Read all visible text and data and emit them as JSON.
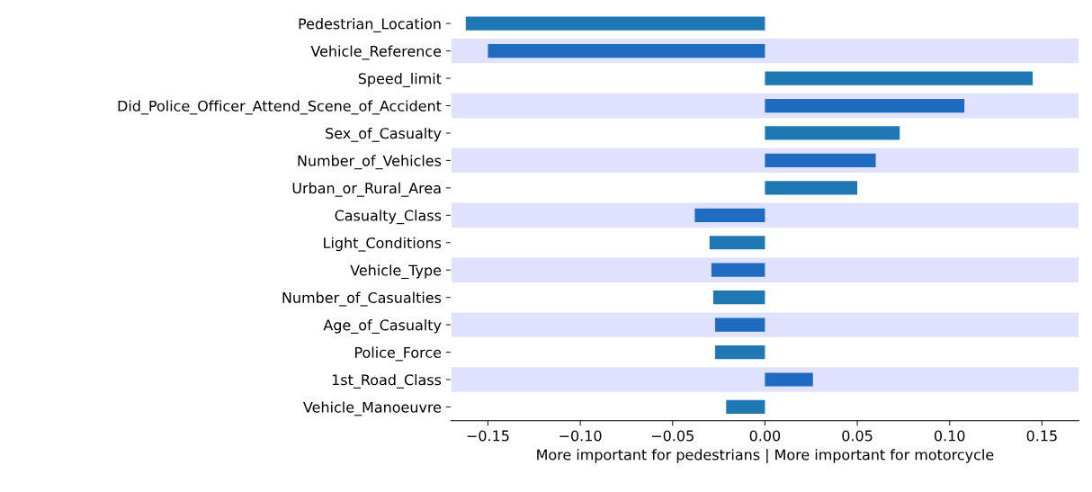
{
  "chart_data": {
    "type": "bar",
    "orientation": "horizontal",
    "xlabel": "More important for pedestrians | More important for motorcycle",
    "categories": [
      "Pedestrian_Location",
      "Vehicle_Reference",
      "Speed_limit",
      "Did_Police_Officer_Attend_Scene_of_Accident",
      "Sex_of_Casualty",
      "Number_of_Vehicles",
      "Urban_or_Rural_Area",
      "Casualty_Class",
      "Light_Conditions",
      "Vehicle_Type",
      "Number_of_Casualties",
      "Age_of_Casualty",
      "Police_Force",
      "1st_Road_Class",
      "Vehicle_Manoeuvre"
    ],
    "values": [
      -0.162,
      -0.15,
      0.145,
      0.108,
      0.073,
      0.06,
      0.05,
      -0.038,
      -0.03,
      -0.029,
      -0.028,
      -0.027,
      -0.027,
      0.026,
      -0.021
    ],
    "colors": [
      "#1f77b4",
      "#1f6bbf",
      "#1f77b4",
      "#1f6bbf",
      "#1f77b4",
      "#1f6bbf",
      "#1f77b4",
      "#1f6bbf",
      "#1f77b4",
      "#1f6bbf",
      "#1f77b4",
      "#1f6bbf",
      "#1f77b4",
      "#1f6bbf",
      "#1f77b4"
    ],
    "xlim": [
      -0.17,
      0.17
    ],
    "xticks": [
      {
        "value": -0.15,
        "label": "−0.15"
      },
      {
        "value": -0.1,
        "label": "−0.10"
      },
      {
        "value": -0.05,
        "label": "−0.05"
      },
      {
        "value": 0,
        "label": "0.00"
      },
      {
        "value": 0.05,
        "label": "0.05"
      },
      {
        "value": 0.1,
        "label": "0.10"
      },
      {
        "value": 0.15,
        "label": "0.15"
      }
    ],
    "bands": [
      {
        "axis": "y",
        "from": "Vehicle_Reference",
        "to": "Vehicle_Reference",
        "color": "#e0e0ff"
      },
      {
        "axis": "y",
        "from": "Did_Police_Officer_Attend_Scene_of_Accident",
        "to": "Did_Police_Officer_Attend_Scene_of_Accident",
        "color": "#e0e0ff"
      },
      {
        "axis": "y",
        "from": "Number_of_Vehicles",
        "to": "Number_of_Vehicles",
        "color": "#e0e0ff"
      },
      {
        "axis": "y",
        "from": "Casualty_Class",
        "to": "Casualty_Class",
        "color": "#e0e0ff"
      },
      {
        "axis": "y",
        "from": "Vehicle_Type",
        "to": "Vehicle_Type",
        "color": "#e0e0ff"
      },
      {
        "axis": "y",
        "from": "Age_of_Casualty",
        "to": "Age_of_Casualty",
        "color": "#e0e0ff"
      },
      {
        "axis": "y",
        "from": "1st_Road_Class",
        "to": "1st_Road_Class",
        "color": "#e0e0ff"
      }
    ],
    "grid": false
  }
}
